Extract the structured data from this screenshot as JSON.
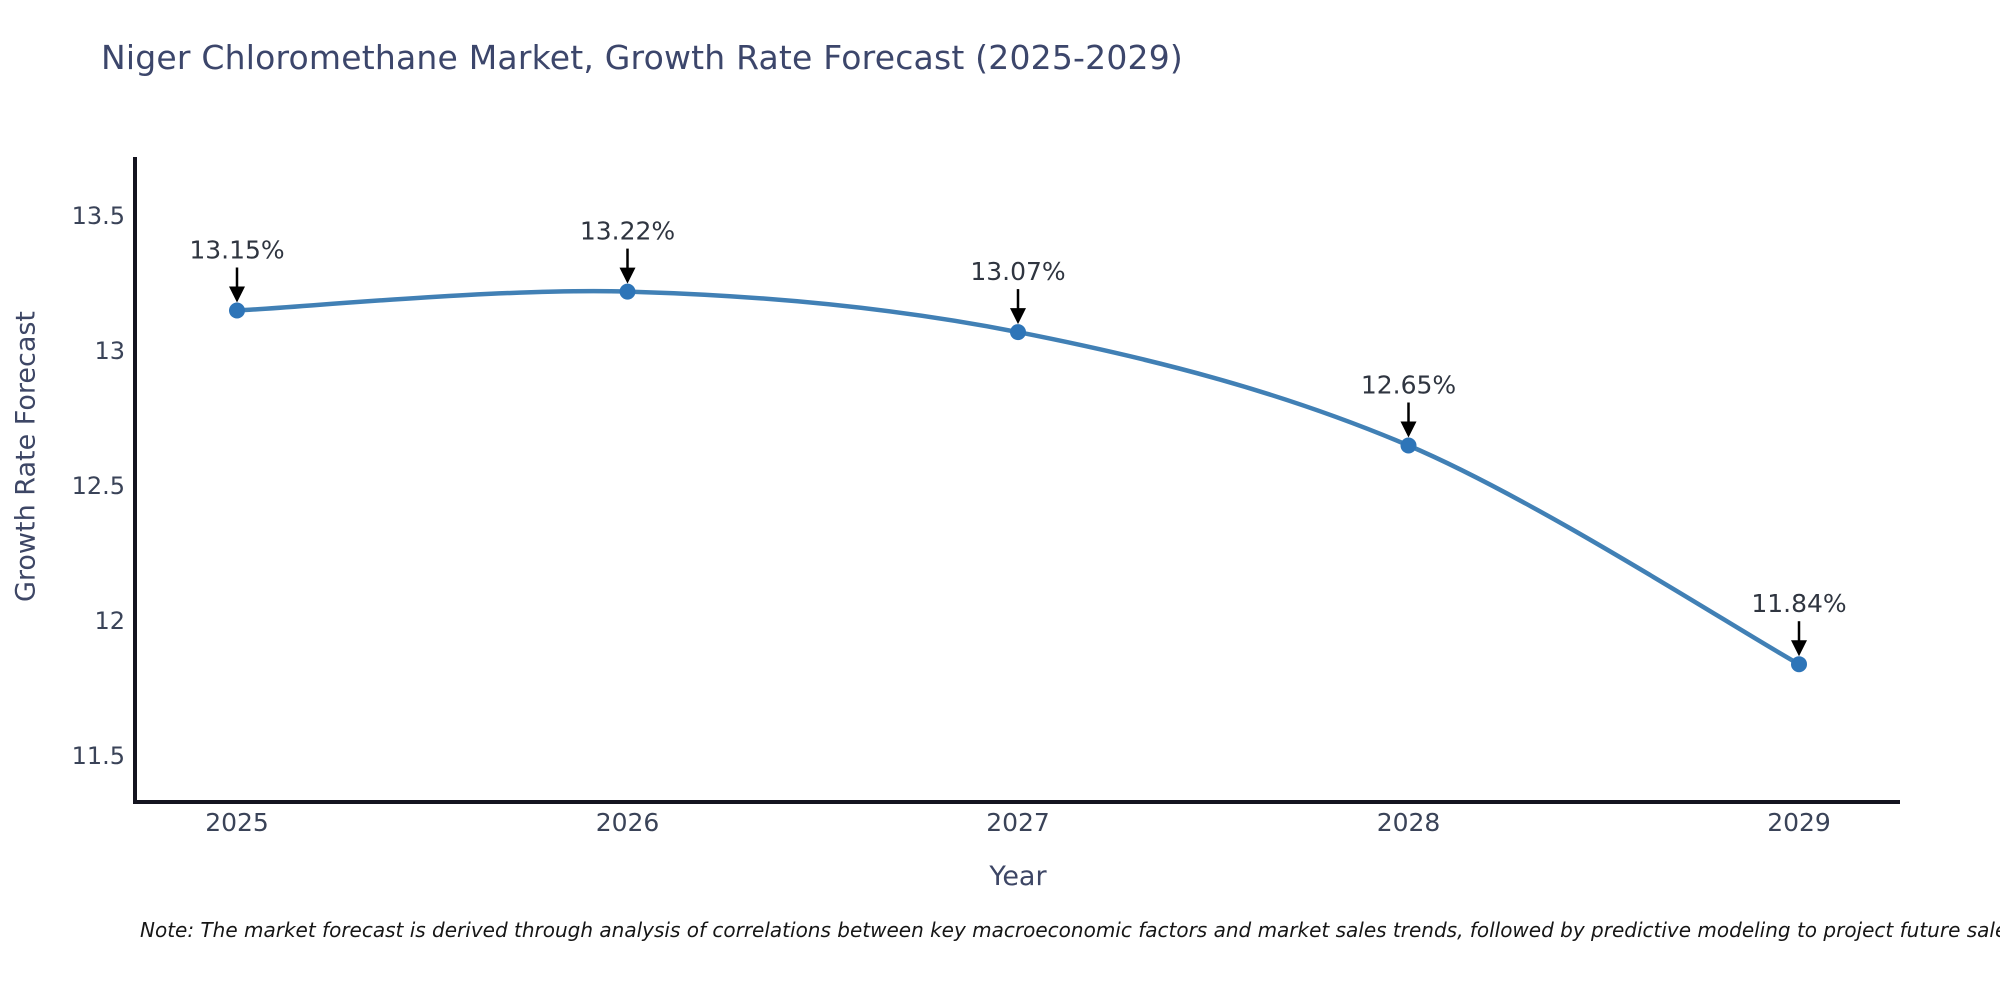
{
  "title": "Niger Chloromethane Market, Growth Rate Forecast (2025-2029)",
  "note": "Note: The market forecast is derived through analysis of correlations between key macroeconomic factors and market sales trends, followed by predictive modeling to project future sales",
  "chart_data": {
    "type": "line",
    "title": "Niger Chloromethane Market, Growth Rate Forecast (2025-2029)",
    "xlabel": "Year",
    "ylabel": "Growth Rate Forecast",
    "categories": [
      "2025",
      "2026",
      "2027",
      "2028",
      "2029"
    ],
    "series": [
      {
        "name": "Growth Rate Forecast",
        "values": [
          13.15,
          13.22,
          13.07,
          12.65,
          11.84
        ]
      }
    ],
    "point_labels": [
      "13.15%",
      "13.22%",
      "13.07%",
      "12.65%",
      "11.84%"
    ],
    "y_ticks": [
      13.5,
      13,
      12.5,
      12,
      11.5
    ],
    "y_tick_labels": [
      "13.5",
      "13",
      "12.5",
      "12",
      "11.5"
    ],
    "ylim": [
      11.3,
      13.8
    ],
    "grid": false,
    "legend_position": "none",
    "marker_style": "circle",
    "annotation_arrows": true,
    "colors": {
      "line": "#4180b5",
      "marker": "#2e75b8",
      "axis": "#14141f",
      "tick_text": "#3a4358",
      "annotation_text": "#2f3540",
      "title_text": "#3c466b",
      "note_text": "#161616"
    }
  }
}
